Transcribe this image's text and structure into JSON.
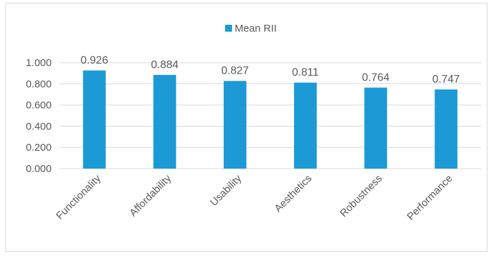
{
  "chart_data": {
    "type": "bar",
    "title": "",
    "xlabel": "",
    "ylabel": "",
    "categories": [
      "Functionality",
      "Affordability",
      "Usability",
      "Aesthetics",
      "Robustness",
      "Performance"
    ],
    "series": [
      {
        "name": "Mean RII",
        "values": [
          0.926,
          0.884,
          0.827,
          0.811,
          0.764,
          0.747
        ],
        "labels": [
          "0.926",
          "0.884",
          "0.827",
          "0.811",
          "0.764",
          "0.747"
        ],
        "color": "#1b9ad6"
      }
    ],
    "ylim": [
      0,
      1
    ],
    "yticks": [
      0,
      0.2,
      0.4,
      0.6,
      0.8,
      1.0
    ],
    "ytick_labels": [
      "0.000",
      "0.200",
      "0.400",
      "0.600",
      "0.800",
      "1.000"
    ],
    "grid": true,
    "legend_position": "top",
    "colors": {
      "bar": "#1b9ad6",
      "grid": "#d9d9d9",
      "text": "#595959"
    }
  }
}
